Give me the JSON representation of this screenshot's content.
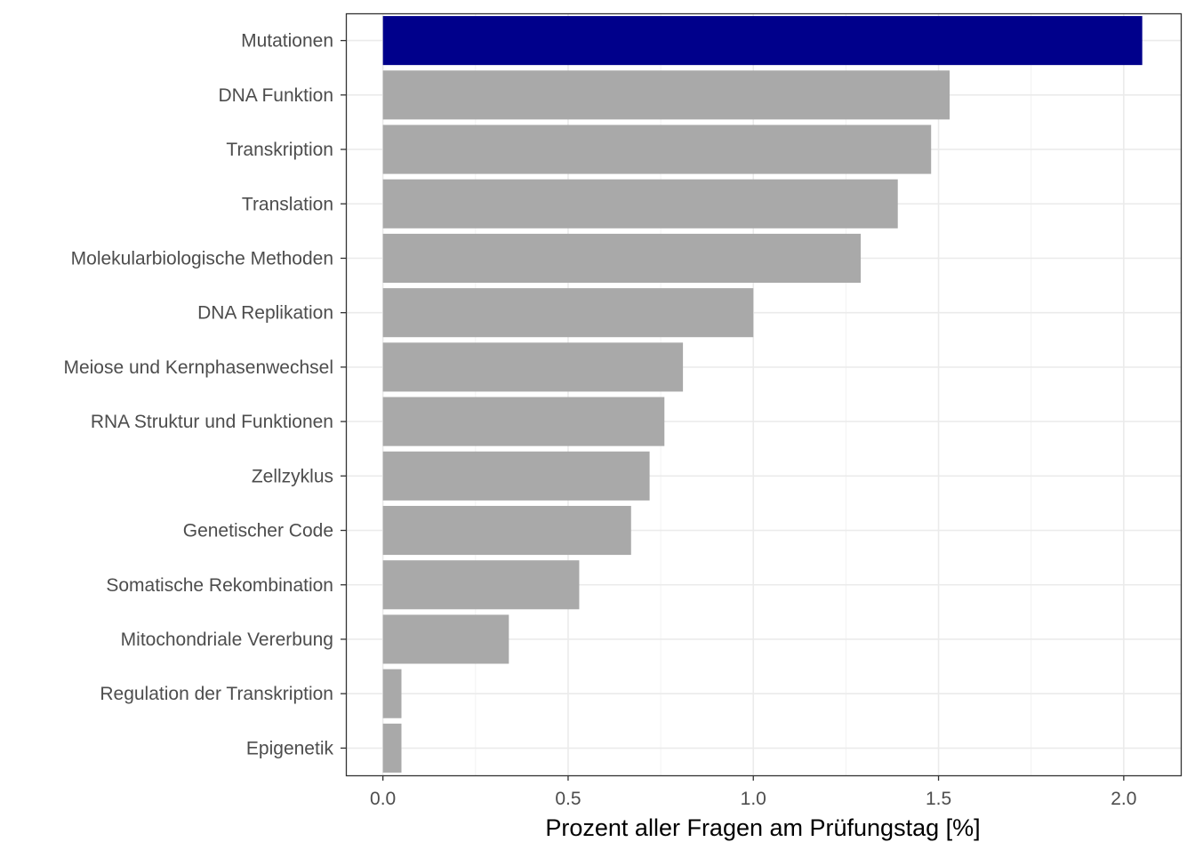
{
  "chart_data": {
    "type": "bar",
    "orientation": "horizontal",
    "title": "",
    "xlabel": "Prozent aller Fragen am Prüfungstag [%]",
    "ylabel": "",
    "xlim": [
      -0.1,
      2.154
    ],
    "xticks": [
      0.0,
      0.5,
      1.0,
      1.5,
      2.0
    ],
    "xtick_labels": [
      "0.0",
      "0.5",
      "1.0",
      "1.5",
      "2.0"
    ],
    "grid": true,
    "categories": [
      "Mutationen",
      "DNA Funktion",
      "Transkription",
      "Translation",
      "Molekularbiologische Methoden",
      "DNA Replikation",
      "Meiose und Kernphasenwechsel",
      "RNA Struktur und Funktionen",
      "Zellzyklus",
      "Genetischer Code",
      "Somatische Rekombination",
      "Mitochondriale Vererbung",
      "Regulation der Transkription",
      "Epigenetik"
    ],
    "values": [
      2.05,
      1.53,
      1.48,
      1.39,
      1.29,
      1.0,
      0.81,
      0.76,
      0.72,
      0.67,
      0.53,
      0.34,
      0.05,
      0.05
    ],
    "highlight_color": "#00008B",
    "bar_color": "#A9A9A9",
    "highlight_index": 0
  }
}
